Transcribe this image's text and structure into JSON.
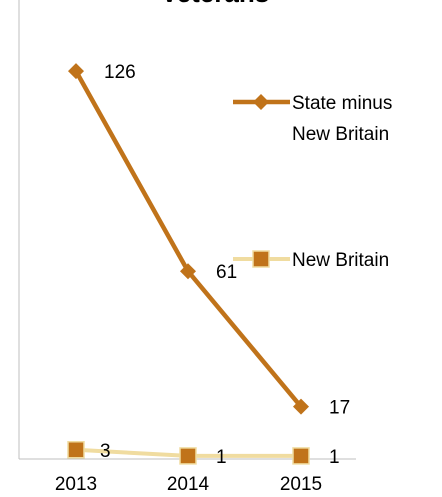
{
  "chart_data": {
    "type": "line",
    "title": "Veterans",
    "xlabel": "",
    "ylabel": "",
    "categories": [
      "2013",
      "2014",
      "2015"
    ],
    "ylim": [
      0,
      140
    ],
    "grid": false,
    "legend_position": "right",
    "series": [
      {
        "name": "State minus New Britain",
        "name_lines": [
          "State minus",
          "New Britain"
        ],
        "values": [
          126,
          61,
          17
        ],
        "labels": [
          "126",
          "61",
          "17"
        ],
        "color": "#C0731A",
        "marker": "diamond"
      },
      {
        "name": "New Britain",
        "name_lines": [
          "New Britain"
        ],
        "values": [
          3,
          1,
          1
        ],
        "labels": [
          "3",
          "1",
          "1"
        ],
        "color": "#C0731A",
        "line_color": "#F0DCA0",
        "marker": "square"
      }
    ]
  }
}
